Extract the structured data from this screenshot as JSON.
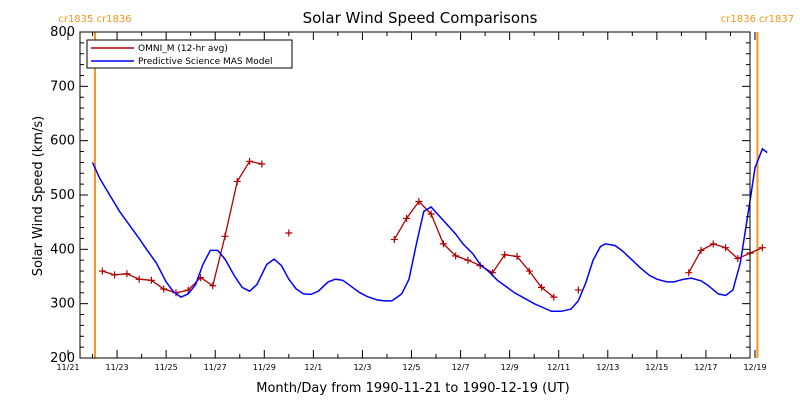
{
  "chart_data": {
    "type": "line",
    "title": "Solar Wind Speed Comparisons",
    "xlabel": "Month/Day from 1990-11-21 to 1990-12-19 (UT)",
    "ylabel": "Solar Wind Speed (km/s)",
    "xlim": [
      0,
      28.5
    ],
    "ylim": [
      200,
      800
    ],
    "yticks": [
      200,
      300,
      400,
      500,
      600,
      700,
      800
    ],
    "xtick_labels": [
      {
        "x": 0,
        "label": "11/21"
      },
      {
        "x": 2,
        "label": "11/23"
      },
      {
        "x": 4,
        "label": "11/25"
      },
      {
        "x": 6,
        "label": "11/27"
      },
      {
        "x": 8,
        "label": "11/29"
      },
      {
        "x": 10,
        "label": "12/1"
      },
      {
        "x": 12,
        "label": "12/3"
      },
      {
        "x": 14,
        "label": "12/5"
      },
      {
        "x": 16,
        "label": "12/7"
      },
      {
        "x": 18,
        "label": "12/9"
      },
      {
        "x": 20,
        "label": "12/11"
      },
      {
        "x": 22,
        "label": "12/13"
      },
      {
        "x": 24,
        "label": "12/15"
      },
      {
        "x": 26,
        "label": "12/17"
      },
      {
        "x": 28,
        "label": "12/19"
      }
    ],
    "legend_position": "top-left",
    "vertical_lines": [
      {
        "x": 1.1,
        "label": "cr1835 cr1836",
        "color": "#f7961d"
      },
      {
        "x": 28.1,
        "label": "cr1836 cr1837",
        "color": "#f7961d"
      }
    ],
    "series": [
      {
        "name": "OMNI_M (12-hr avg)",
        "color": "#b00000",
        "marker": "plus",
        "segments": [
          [
            [
              1.4,
              360
            ],
            [
              1.9,
              353
            ],
            [
              2.4,
              355
            ],
            [
              2.9,
              345
            ],
            [
              3.4,
              343
            ],
            [
              3.9,
              327
            ],
            [
              4.4,
              320
            ],
            [
              4.9,
              325
            ],
            [
              5.4,
              348
            ],
            [
              5.9,
              333
            ],
            [
              6.4,
              424
            ],
            [
              6.9,
              525
            ],
            [
              7.4,
              562
            ],
            [
              7.9,
              557
            ]
          ],
          [
            [
              9.0,
              430
            ]
          ],
          [
            [
              13.3,
              418
            ],
            [
              13.8,
              457
            ],
            [
              14.3,
              488
            ],
            [
              14.8,
              465
            ],
            [
              15.3,
              410
            ],
            [
              15.8,
              388
            ],
            [
              16.3,
              380
            ],
            [
              16.8,
              370
            ],
            [
              17.3,
              357
            ],
            [
              17.8,
              390
            ],
            [
              18.3,
              387
            ],
            [
              18.8,
              360
            ],
            [
              19.3,
              330
            ],
            [
              19.8,
              312
            ]
          ],
          [
            [
              20.8,
              325
            ]
          ],
          [
            [
              25.3,
              357
            ],
            [
              25.8,
              398
            ],
            [
              26.3,
              410
            ],
            [
              26.8,
              403
            ],
            [
              27.3,
              383
            ],
            [
              27.8,
              393
            ],
            [
              28.3,
              403
            ]
          ]
        ]
      },
      {
        "name": "Predictive Science MAS Model",
        "color": "#0000ff",
        "marker": "none",
        "segments": [
          [
            [
              1.0,
              560
            ],
            [
              1.3,
              530
            ],
            [
              1.7,
              500
            ],
            [
              2.1,
              470
            ],
            [
              2.5,
              445
            ],
            [
              2.9,
              420
            ],
            [
              3.2,
              400
            ],
            [
              3.6,
              375
            ],
            [
              4.0,
              340
            ],
            [
              4.3,
              322
            ],
            [
              4.6,
              312
            ],
            [
              4.9,
              318
            ],
            [
              5.2,
              335
            ],
            [
              5.5,
              372
            ],
            [
              5.8,
              398
            ],
            [
              6.1,
              398
            ],
            [
              6.4,
              382
            ],
            [
              6.8,
              350
            ],
            [
              7.1,
              330
            ],
            [
              7.4,
              323
            ],
            [
              7.7,
              335
            ],
            [
              8.1,
              372
            ],
            [
              8.4,
              382
            ],
            [
              8.7,
              370
            ],
            [
              9.0,
              345
            ],
            [
              9.3,
              327
            ],
            [
              9.6,
              318
            ],
            [
              9.9,
              317
            ],
            [
              10.2,
              323
            ],
            [
              10.6,
              340
            ],
            [
              10.9,
              345
            ],
            [
              11.2,
              343
            ],
            [
              11.5,
              333
            ],
            [
              11.9,
              320
            ],
            [
              12.2,
              313
            ],
            [
              12.6,
              307
            ],
            [
              12.9,
              305
            ],
            [
              13.2,
              305
            ],
            [
              13.6,
              318
            ],
            [
              13.9,
              345
            ],
            [
              14.2,
              410
            ],
            [
              14.5,
              470
            ],
            [
              14.8,
              478
            ],
            [
              15.1,
              463
            ],
            [
              15.4,
              448
            ],
            [
              15.8,
              428
            ],
            [
              16.1,
              410
            ],
            [
              16.5,
              392
            ],
            [
              16.8,
              372
            ],
            [
              17.2,
              357
            ],
            [
              17.5,
              343
            ],
            [
              17.9,
              330
            ],
            [
              18.2,
              320
            ],
            [
              18.6,
              310
            ],
            [
              19.0,
              300
            ],
            [
              19.4,
              292
            ],
            [
              19.7,
              286
            ],
            [
              20.1,
              286
            ],
            [
              20.5,
              290
            ],
            [
              20.8,
              305
            ],
            [
              21.1,
              338
            ],
            [
              21.4,
              380
            ],
            [
              21.7,
              405
            ],
            [
              21.9,
              410
            ],
            [
              22.3,
              407
            ],
            [
              22.6,
              397
            ],
            [
              23.0,
              380
            ],
            [
              23.3,
              367
            ],
            [
              23.7,
              352
            ],
            [
              24.0,
              345
            ],
            [
              24.4,
              340
            ],
            [
              24.7,
              340
            ],
            [
              25.1,
              345
            ],
            [
              25.4,
              347
            ],
            [
              25.8,
              342
            ],
            [
              26.1,
              333
            ],
            [
              26.5,
              318
            ],
            [
              26.8,
              315
            ],
            [
              27.1,
              325
            ],
            [
              27.4,
              375
            ],
            [
              27.8,
              490
            ],
            [
              28.0,
              550
            ],
            [
              28.3,
              585
            ],
            [
              28.5,
              578
            ]
          ]
        ]
      }
    ]
  }
}
